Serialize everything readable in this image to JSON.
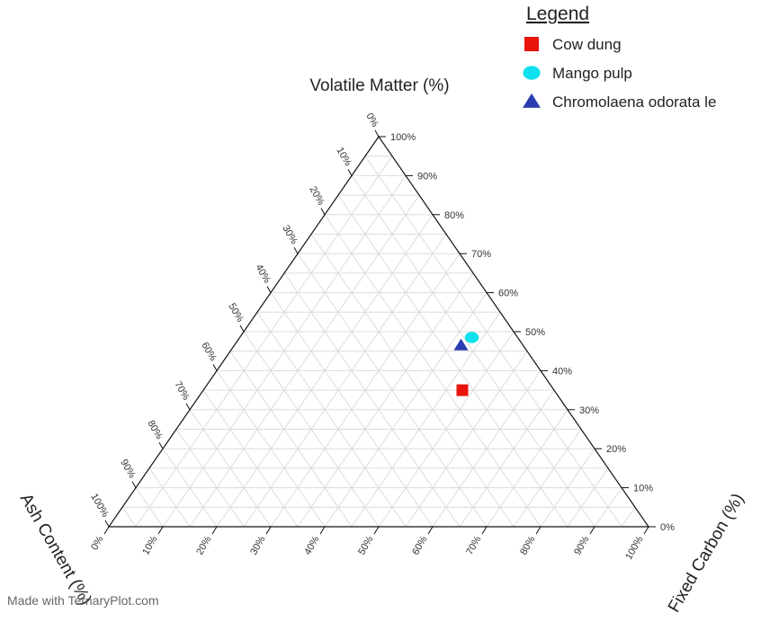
{
  "chart_data": {
    "type": "scatter",
    "subtype": "ternary",
    "axes": {
      "top": {
        "label": "Volatile Matter (%)"
      },
      "right": {
        "label": "Fixed Carbon (%)"
      },
      "left": {
        "label": "Ash Content (%)"
      }
    },
    "range": [
      0,
      100
    ],
    "tick_step": 10,
    "tick_suffix": "%",
    "grid": true,
    "legend": {
      "title": "Legend",
      "position": "top-right"
    },
    "series": [
      {
        "name": "Cow dung",
        "marker": "square",
        "color": "#e8140c",
        "points": [
          {
            "volatile": 35,
            "fixed_carbon": 48,
            "ash": 17
          }
        ]
      },
      {
        "name": "Mango pulp",
        "marker": "circle",
        "color": "#0fe0ee",
        "points": [
          {
            "volatile": 48.5,
            "fixed_carbon": 43,
            "ash": 8.5
          }
        ]
      },
      {
        "name": "Chromolaena odorata le",
        "marker": "triangle",
        "color": "#2b3bb2",
        "points": [
          {
            "volatile": 46.5,
            "fixed_carbon": 42,
            "ash": 11.5
          }
        ]
      }
    ]
  },
  "footer": {
    "watermark": "Made with TernaryPlot.com"
  }
}
